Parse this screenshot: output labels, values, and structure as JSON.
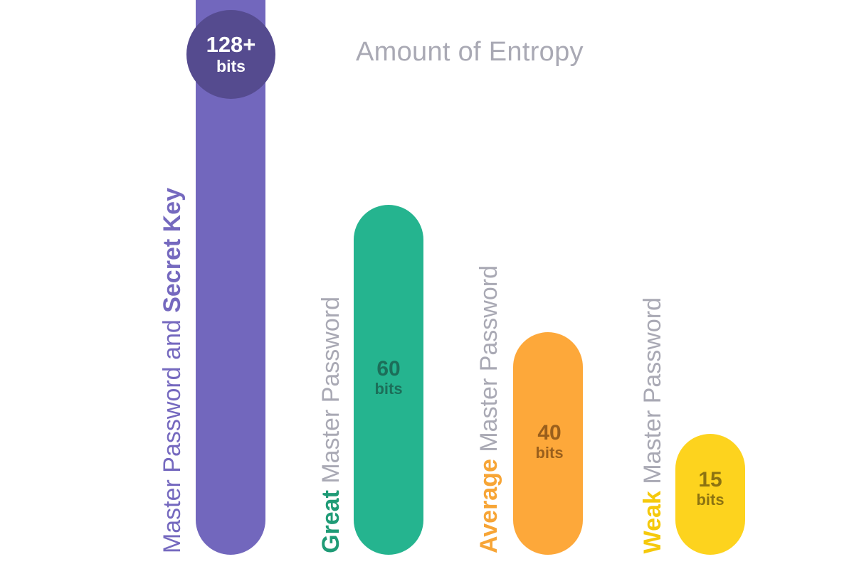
{
  "chart_data": {
    "type": "bar",
    "title": "Amount of Entropy",
    "unit": "bits",
    "ylim": [
      0,
      128
    ],
    "series": [
      {
        "name": "Master Password and Secret Key",
        "label_regular_prefix": "Master Password and ",
        "label_strong": "Secret Key",
        "value": 128,
        "value_label": "128+",
        "color": "#7267bd",
        "label_color": "#7569bf",
        "badge_color": "#554b8f"
      },
      {
        "name": "Great Master Password",
        "label_strong": "Great",
        "label_regular": " Master Password",
        "value": 60,
        "value_label": "60",
        "color": "#25b48f",
        "strong_color": "#1f9b76",
        "text_color": "#1c6e59"
      },
      {
        "name": "Average Master Password",
        "label_strong": "Average",
        "label_regular": " Master Password",
        "value": 40,
        "value_label": "40",
        "color": "#fda83a",
        "strong_color": "#f7a536",
        "text_color": "#9a5f1c"
      },
      {
        "name": "Weak Master Password",
        "label_strong": "Weak",
        "label_regular": " Master Password",
        "value": 15,
        "value_label": "15",
        "color": "#fdd31e",
        "strong_color": "#f5c90c",
        "text_color": "#8c7311"
      }
    ]
  }
}
